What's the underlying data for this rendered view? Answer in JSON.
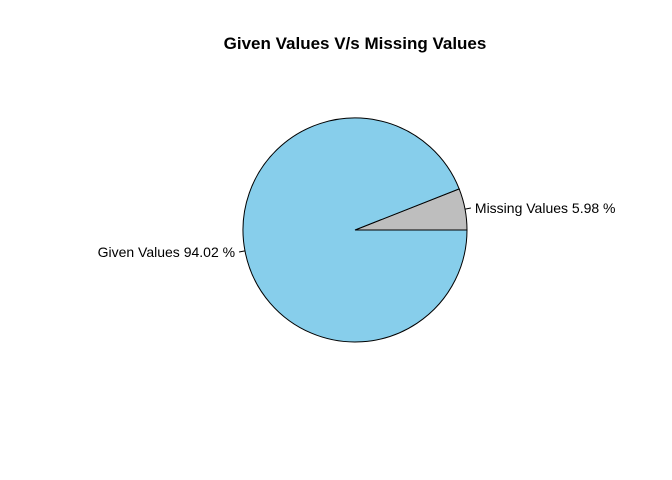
{
  "chart_data": {
    "type": "pie",
    "title": "Given Values V/s Missing Values",
    "slices": [
      {
        "label": "Missing Values 5.98 %",
        "value": 5.98,
        "color": "#bebebe"
      },
      {
        "label": "Given Values 94.02 %",
        "value": 94.02,
        "color": "#87ceeb"
      }
    ],
    "start_angle_deg": 0,
    "direction": "counterclockwise",
    "border_color": "#000000"
  }
}
